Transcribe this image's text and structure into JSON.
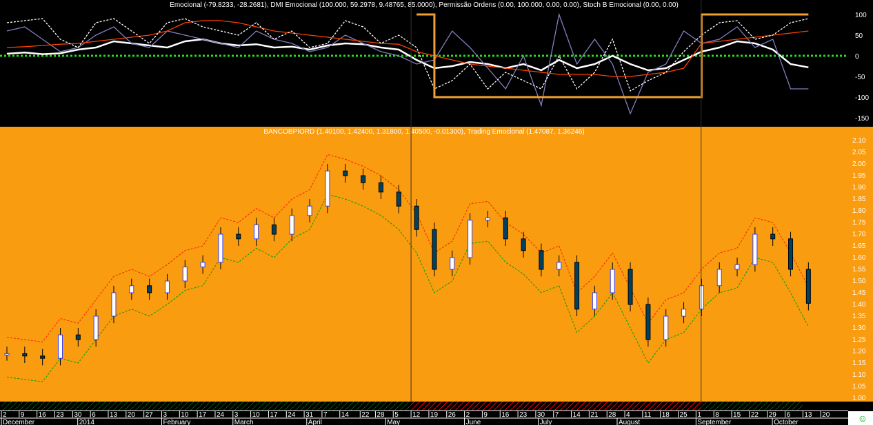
{
  "chart_data": [
    {
      "type": "line",
      "panel": "indicator",
      "title": "Emocional (-79.8233, -28.2681), DMI Emocional (100.000, 59.2978, 9.48765, 85.0000), Permissão Ordens (0.00, 100.000, 0.00, 0.00), Stoch B Emocional (0.00, 0.00)",
      "ylim": [
        -170,
        115
      ],
      "yticks": [
        100,
        50,
        0,
        -50,
        -100,
        -150
      ],
      "series": [
        {
          "key": "emocional",
          "color": "#ffffff",
          "values": [
            5,
            8,
            4,
            6,
            15,
            20,
            35,
            30,
            25,
            20,
            35,
            40,
            30,
            25,
            28,
            20,
            22,
            15,
            25,
            30,
            28,
            20,
            15,
            -10,
            -30,
            -25,
            -15,
            -20,
            -30,
            -20,
            -35,
            -10,
            -30,
            -20,
            0,
            -20,
            -35,
            -30,
            -10,
            10,
            20,
            35,
            30,
            15,
            -20,
            -28
          ]
        },
        {
          "key": "dmi",
          "color": "#8080c0",
          "values": [
            60,
            70,
            40,
            10,
            20,
            50,
            70,
            30,
            20,
            60,
            50,
            40,
            30,
            20,
            60,
            40,
            30,
            10,
            20,
            50,
            30,
            10,
            0,
            -20,
            -10,
            60,
            20,
            -30,
            -80,
            0,
            -120,
            100,
            -20,
            40,
            -20,
            -140,
            -40,
            -20,
            60,
            30,
            40,
            70,
            20,
            40,
            -80,
            -80
          ]
        },
        {
          "key": "orange",
          "color": "#ff4000",
          "values": [
            20,
            22,
            25,
            28,
            30,
            35,
            40,
            45,
            50,
            60,
            80,
            85,
            85,
            80,
            70,
            60,
            55,
            50,
            45,
            40,
            35,
            30,
            28,
            10,
            0,
            -10,
            -20,
            -25,
            -30,
            -35,
            -40,
            -45,
            -45,
            -45,
            -50,
            -50,
            -45,
            -40,
            -30,
            30,
            35,
            40,
            45,
            50,
            55,
            60
          ]
        },
        {
          "key": "stoch",
          "color": "#ffffff",
          "dashed": true,
          "values": [
            80,
            85,
            90,
            40,
            20,
            80,
            90,
            60,
            30,
            80,
            90,
            70,
            60,
            50,
            80,
            40,
            60,
            20,
            30,
            85,
            70,
            30,
            50,
            20,
            -80,
            -60,
            -20,
            -80,
            -40,
            -60,
            -80,
            0,
            -80,
            -40,
            40,
            -85,
            -60,
            -40,
            10,
            50,
            80,
            85,
            40,
            50,
            80,
            90
          ]
        },
        {
          "key": "permissao",
          "color": "#f0a030",
          "values": [
            null,
            null,
            null,
            null,
            null,
            null,
            null,
            null,
            null,
            null,
            null,
            null,
            null,
            null,
            null,
            null,
            null,
            null,
            null,
            null,
            null,
            null,
            null,
            100,
            -100,
            -100,
            -100,
            -100,
            -100,
            -100,
            -100,
            -100,
            -100,
            -100,
            -100,
            -100,
            -100,
            -100,
            -100,
            100,
            100,
            100,
            100,
            100,
            100,
            100
          ]
        }
      ]
    },
    {
      "type": "candlestick",
      "panel": "price",
      "title": "BANCOBPIORD (1.40100, 1.42400, 1.31800, 1.40500, -0.01300), Trading Emocional (1.47087, 1.36246)",
      "ylim": [
        0.98,
        2.14
      ],
      "yticks": [
        "2.10",
        "2.05",
        "2.00",
        "1.95",
        "1.90",
        "1.85",
        "1.80",
        "1.75",
        "1.70",
        "1.65",
        "1.60",
        "1.55",
        "1.50",
        "1.45",
        "1.40",
        "1.35",
        "1.30",
        "1.25",
        "1.20",
        "1.15",
        "1.10",
        "1.05",
        "1.00"
      ],
      "close": [
        1.19,
        1.18,
        1.17,
        1.27,
        1.25,
        1.35,
        1.45,
        1.48,
        1.45,
        1.5,
        1.56,
        1.58,
        1.7,
        1.68,
        1.74,
        1.7,
        1.78,
        1.82,
        1.97,
        1.95,
        1.92,
        1.88,
        1.82,
        1.72,
        1.55,
        1.6,
        1.76,
        1.77,
        1.68,
        1.63,
        1.55,
        1.58,
        1.38,
        1.45,
        1.55,
        1.4,
        1.25,
        1.35,
        1.38,
        1.48,
        1.55,
        1.57,
        1.7,
        1.68,
        1.55,
        1.405
      ],
      "upper_band_color": "#ff2000",
      "lower_band_color": "#00a000",
      "up_color": "#3040ff",
      "down_color": "#004060"
    }
  ],
  "x_axis": {
    "day_ticks": [
      [
        "2013-12-02",
        "2"
      ],
      [
        "2013-12-09",
        "9"
      ],
      [
        "2013-12-16",
        "16"
      ],
      [
        "2013-12-23",
        "23"
      ],
      [
        "2013-12-30",
        "30"
      ],
      [
        "2014-01-06",
        "6"
      ],
      [
        "2014-01-13",
        "13"
      ],
      [
        "2014-01-20",
        "20"
      ],
      [
        "2014-01-27",
        "27"
      ],
      [
        "2014-02-03",
        "3"
      ],
      [
        "2014-02-10",
        "10"
      ],
      [
        "2014-02-17",
        "17"
      ],
      [
        "2014-02-24",
        "24"
      ],
      [
        "2014-03-03",
        "3"
      ],
      [
        "2014-03-10",
        "10"
      ],
      [
        "2014-03-17",
        "17"
      ],
      [
        "2014-03-24",
        "24"
      ],
      [
        "2014-03-31",
        "31"
      ],
      [
        "2014-04-07",
        "7"
      ],
      [
        "2014-04-14",
        "14"
      ],
      [
        "2014-04-22",
        "22"
      ],
      [
        "2014-04-28",
        "28"
      ],
      [
        "2014-05-05",
        "5"
      ],
      [
        "2014-05-12",
        "12"
      ],
      [
        "2014-05-19",
        "19"
      ],
      [
        "2014-05-26",
        "26"
      ],
      [
        "2014-06-02",
        "2"
      ],
      [
        "2014-06-09",
        "9"
      ],
      [
        "2014-06-16",
        "16"
      ],
      [
        "2014-06-23",
        "23"
      ],
      [
        "2014-06-30",
        "30"
      ],
      [
        "2014-07-07",
        "7"
      ],
      [
        "2014-07-14",
        "14"
      ],
      [
        "2014-07-21",
        "21"
      ],
      [
        "2014-07-28",
        "28"
      ],
      [
        "2014-08-04",
        "4"
      ],
      [
        "2014-08-11",
        "11"
      ],
      [
        "2014-08-18",
        "18"
      ],
      [
        "2014-08-25",
        "25"
      ],
      [
        "2014-09-01",
        "1"
      ],
      [
        "2014-09-08",
        "8"
      ],
      [
        "2014-09-15",
        "15"
      ],
      [
        "2014-09-22",
        "22"
      ],
      [
        "2014-09-29",
        "29"
      ],
      [
        "2014-10-06",
        "6"
      ],
      [
        "2014-10-13",
        "13"
      ],
      [
        "2014-10-20",
        "20"
      ]
    ],
    "month_labels": [
      [
        "2013-12-02",
        "December"
      ],
      [
        "2014-01-01",
        "2014"
      ],
      [
        "2014-02-03",
        "February"
      ],
      [
        "2014-03-03",
        "March"
      ],
      [
        "2014-04-01",
        "April"
      ],
      [
        "2014-05-02",
        "May"
      ],
      [
        "2014-06-02",
        "June"
      ],
      [
        "2014-07-01",
        "July"
      ],
      [
        "2014-08-01",
        "August"
      ],
      [
        "2014-09-01",
        "September"
      ],
      [
        "2014-10-01",
        "October"
      ]
    ],
    "start_date": "2013-12-02",
    "regime_zones": [
      {
        "from": "2013-12-02",
        "to": "2014-05-12",
        "color": "#008000"
      },
      {
        "from": "2014-05-12",
        "to": "2014-09-03",
        "color": "#ff0000"
      },
      {
        "from": "2014-09-03",
        "to": "2014-10-13",
        "color": "#008000"
      }
    ],
    "dividers": [
      "2014-05-12",
      "2014-09-03"
    ]
  },
  "colors": {
    "price_bg": "#f99c10",
    "indicator_bg": "#000000",
    "axis_text": "#ffffff"
  },
  "status": {
    "smiley": "☺"
  }
}
